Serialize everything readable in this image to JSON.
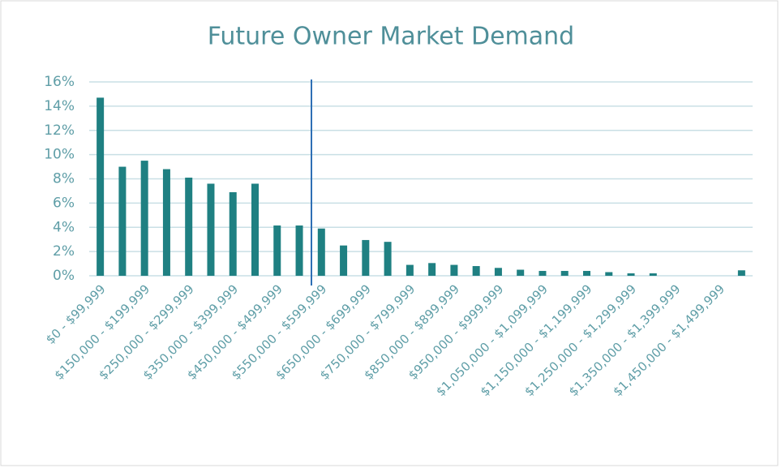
{
  "chart_data": {
    "type": "bar",
    "title": "Future Owner Market Demand",
    "categories": [
      "$0 - $99,999",
      null,
      "$150,000 - $199,999",
      null,
      "$250,000 - $299,999",
      null,
      "$350,000 - $399,999",
      null,
      "$450,000 - $499,999",
      null,
      "$550,000 - $599,999",
      null,
      "$650,000 - $699,999",
      null,
      "$750,000 - $799,999",
      null,
      "$850,000 - $899,999",
      null,
      "$950,000 - $999,999",
      null,
      "$1,050,000 - $1,099,999",
      null,
      "$1,150,000 - $1,199,999",
      null,
      "$1,250,000 - $1,299,999",
      null,
      "$1,350,000 - $1,399,999",
      null,
      "$1,450,000 - $1,499,999",
      null
    ],
    "values": [
      14.7,
      9.0,
      9.5,
      8.8,
      8.1,
      7.6,
      6.9,
      7.6,
      4.15,
      4.15,
      3.9,
      2.5,
      2.95,
      2.8,
      0.9,
      1.05,
      0.9,
      0.8,
      0.65,
      0.5,
      0.4,
      0.4,
      0.4,
      0.3,
      0.2,
      0.2,
      0,
      0,
      0,
      0.45
    ],
    "color": "#1f8082",
    "ylim": [
      0,
      16
    ],
    "yticks": [
      {
        "value": 0,
        "label": "0%"
      },
      {
        "value": 2,
        "label": "2%"
      },
      {
        "value": 4,
        "label": "4%"
      },
      {
        "value": 6,
        "label": "6%"
      },
      {
        "value": 8,
        "label": "8%"
      },
      {
        "value": 10,
        "label": "10%"
      },
      {
        "value": 12,
        "label": "12%"
      },
      {
        "value": 14,
        "label": "14%"
      },
      {
        "value": 16,
        "label": "16%"
      }
    ],
    "grid": true
  }
}
